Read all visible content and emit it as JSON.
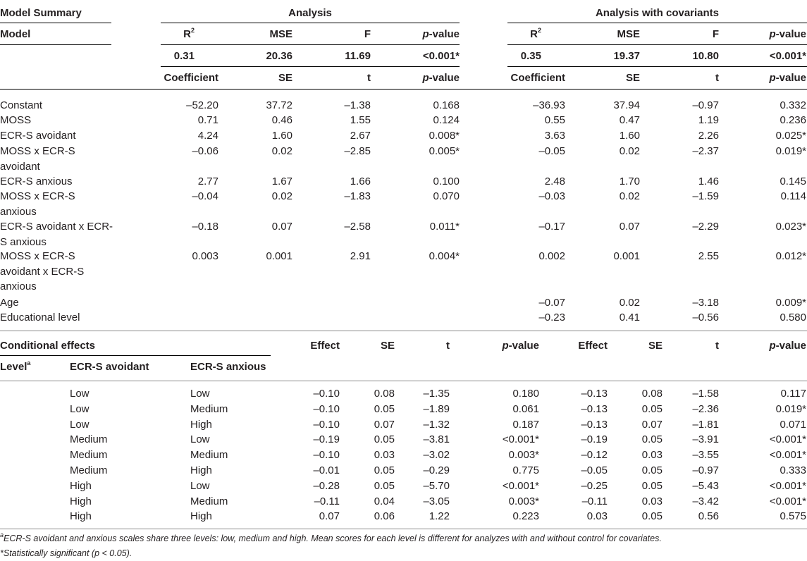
{
  "summary": {
    "model_summary": "Model Summary",
    "model": "Model",
    "analysis": "Analysis",
    "analysis_cov": "Analysis with covariants",
    "h_r2": "R",
    "h_r2_sup": "2",
    "h_mse": "MSE",
    "h_f": "F",
    "h_p": "p",
    "h_p_suffix": "-value",
    "a": {
      "r2": "0.31",
      "mse": "20.36",
      "f": "11.69",
      "p": "<0.001*"
    },
    "c": {
      "r2": "0.35",
      "mse": "19.37",
      "f": "10.80",
      "p": "<0.001*"
    },
    "h_coef": "Coefficient",
    "h_se": "SE",
    "h_t": "t"
  },
  "model_rows": [
    {
      "label": [
        "Constant"
      ],
      "a": [
        "–52.20",
        "37.72",
        "–1.38",
        "0.168"
      ],
      "c": [
        "–36.93",
        "37.94",
        "–0.97",
        "0.332"
      ]
    },
    {
      "label": [
        "MOSS"
      ],
      "a": [
        "0.71",
        "0.46",
        "1.55",
        "0.124"
      ],
      "c": [
        "0.55",
        "0.47",
        "1.19",
        "0.236"
      ]
    },
    {
      "label": [
        "ECR-S avoidant"
      ],
      "a": [
        "4.24",
        "1.60",
        "2.67",
        "0.008*"
      ],
      "c": [
        "3.63",
        "1.60",
        "2.26",
        "0.025*"
      ]
    },
    {
      "label": [
        "MOSS x ECR-S",
        "avoidant"
      ],
      "a": [
        "–0.06",
        "0.02",
        "–2.85",
        "0.005*"
      ],
      "c": [
        "–0.05",
        "0.02",
        "–2.37",
        "0.019*"
      ]
    },
    {
      "label": [
        "ECR-S anxious"
      ],
      "a": [
        "2.77",
        "1.67",
        "1.66",
        "0.100"
      ],
      "c": [
        "2.48",
        "1.70",
        "1.46",
        "0.145"
      ]
    },
    {
      "label": [
        "MOSS x ECR-S",
        "anxious"
      ],
      "a": [
        "–0.04",
        "0.02",
        "–1.83",
        "0.070"
      ],
      "c": [
        "–0.03",
        "0.02",
        "–1.59",
        "0.114"
      ]
    },
    {
      "label": [
        "ECR-S avoidant x ECR-",
        "S anxious"
      ],
      "a": [
        "–0.18",
        "0.07",
        "–2.58",
        "0.011*"
      ],
      "c": [
        "–0.17",
        "0.07",
        "–2.29",
        "0.023*"
      ]
    },
    {
      "label": [
        "MOSS x ECR-S",
        "avoidant x ECR-S",
        "anxious"
      ],
      "a": [
        "0.003",
        "0.001",
        "2.91",
        "0.004*"
      ],
      "c": [
        "0.002",
        "0.001",
        "2.55",
        "0.012*"
      ]
    },
    {
      "label": [
        "Age"
      ],
      "a": [
        "",
        "",
        "",
        ""
      ],
      "c": [
        "–0.07",
        "0.02",
        "–3.18",
        "0.009*"
      ]
    },
    {
      "label": [
        "Educational level"
      ],
      "a": [
        "",
        "",
        "",
        ""
      ],
      "c": [
        "–0.23",
        "0.41",
        "–0.56",
        "0.580"
      ]
    }
  ],
  "cond": {
    "title": "Conditional effects",
    "level": "Level",
    "level_sup": "a",
    "avoidant": "ECR-S avoidant",
    "anxious": "ECR-S anxious",
    "effect": "Effect",
    "se": "SE",
    "t": "t",
    "p": "p",
    "p_suffix": "-value"
  },
  "cond_rows": [
    {
      "avoid": "Low",
      "anx": "Low",
      "a": [
        "–0.10",
        "0.08",
        "–1.35",
        "0.180"
      ],
      "c": [
        "–0.13",
        "0.08",
        "–1.58",
        "0.117"
      ]
    },
    {
      "avoid": "Low",
      "anx": "Medium",
      "a": [
        "–0.10",
        "0.05",
        "–1.89",
        "0.061"
      ],
      "c": [
        "–0.13",
        "0.05",
        "–2.36",
        "0.019*"
      ]
    },
    {
      "avoid": "Low",
      "anx": "High",
      "a": [
        "–0.10",
        "0.07",
        "–1.32",
        "0.187"
      ],
      "c": [
        "–0.13",
        "0.07",
        "–1.81",
        "0.071"
      ]
    },
    {
      "avoid": "Medium",
      "anx": "Low",
      "a": [
        "–0.19",
        "0.05",
        "–3.81",
        "<0.001*"
      ],
      "c": [
        "–0.19",
        "0.05",
        "–3.91",
        "<0.001*"
      ]
    },
    {
      "avoid": "Medium",
      "anx": "Medium",
      "a": [
        "–0.10",
        "0.03",
        "–3.02",
        "0.003*"
      ],
      "c": [
        "–0.12",
        "0.03",
        "–3.55",
        "<0.001*"
      ]
    },
    {
      "avoid": "Medium",
      "anx": "High",
      "a": [
        "–0.01",
        "0.05",
        "–0.29",
        "0.775"
      ],
      "c": [
        "–0.05",
        "0.05",
        "–0.97",
        "0.333"
      ]
    },
    {
      "avoid": "High",
      "anx": "Low",
      "a": [
        "–0.28",
        "0.05",
        "–5.70",
        "<0.001*"
      ],
      "c": [
        "–0.25",
        "0.05",
        "–5.43",
        "<0.001*"
      ]
    },
    {
      "avoid": "High",
      "anx": "Medium",
      "a": [
        "–0.11",
        "0.04",
        "–3.05",
        "0.003*"
      ],
      "c": [
        "–0.11",
        "0.03",
        "–3.42",
        "<0.001*"
      ]
    },
    {
      "avoid": "High",
      "anx": "High",
      "a": [
        "0.07",
        "0.06",
        "1.22",
        "0.223"
      ],
      "c": [
        "0.03",
        "0.05",
        "0.56",
        "0.575"
      ]
    }
  ],
  "footnotes": {
    "a_sup": "a",
    "a": "ECR-S avoidant and anxious scales share three levels: low, medium and high. Mean scores for each level is different for analyzes with and without control for covariates.",
    "star": "*Statistically significant (",
    "star_p": "p",
    "star_tail": " < 0.05)."
  }
}
